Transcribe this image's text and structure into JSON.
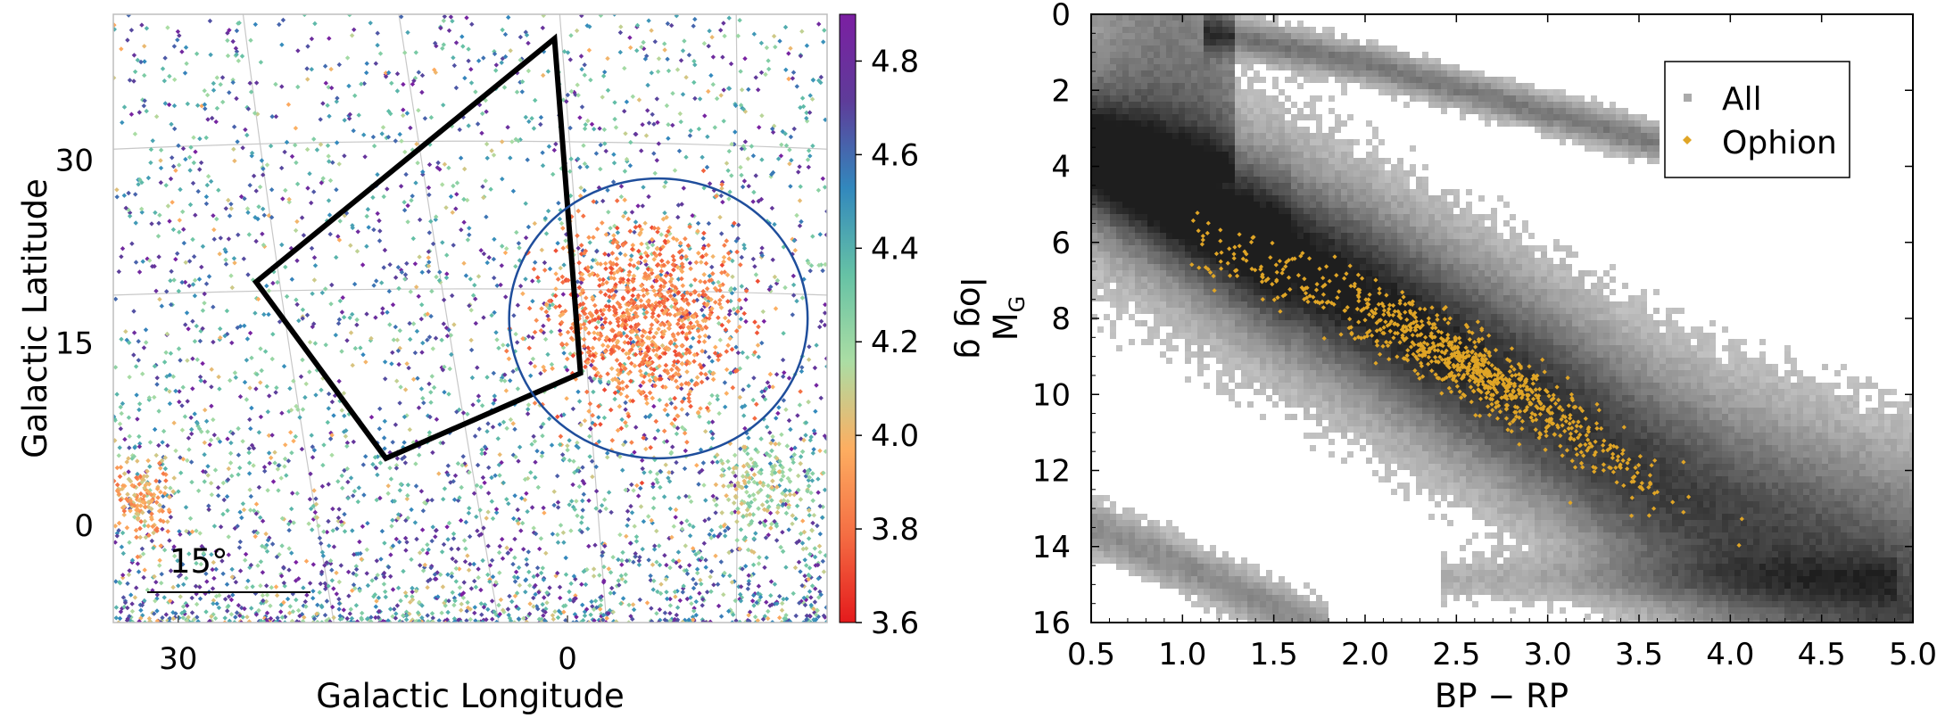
{
  "chart_data": [
    {
      "type": "scatter",
      "title": "",
      "xlabel": "Galactic Longitude",
      "ylabel": "Galactic Latitude",
      "xlim": [
        35,
        -20
      ],
      "ylim": [
        -8,
        42
      ],
      "x_ticks": [
        30,
        0
      ],
      "x_tick_labels": [
        "30",
        "0"
      ],
      "y_ticks": [
        0,
        15,
        30
      ],
      "y_tick_labels": [
        "0",
        "15",
        "30"
      ],
      "grid": true,
      "scale_bar_label": "15°",
      "colorbar": {
        "label": "log g",
        "range": [
          3.6,
          4.9
        ],
        "ticks": [
          3.6,
          3.8,
          4.0,
          4.2,
          4.4,
          4.6,
          4.8
        ],
        "tick_labels": [
          "3.6",
          "3.8",
          "4.0",
          "4.2",
          "4.4",
          "4.6",
          "4.8"
        ],
        "colormap": "Spectral",
        "colors": [
          "#e41a1c",
          "#f46d43",
          "#fdae61",
          "#abdda4",
          "#66c2a5",
          "#3288bd",
          "#5e3c99",
          "#7b1fa2"
        ]
      },
      "overlays": [
        {
          "shape": "polygon",
          "color": "#000000",
          "vertices": [
            [
              1,
              40
            ],
            [
              -1,
              12.5
            ],
            [
              14,
              5.5
            ],
            [
              24,
              20
            ]
          ]
        },
        {
          "shape": "circle",
          "color": "#1f4e9c",
          "center": [
            -7,
            17
          ],
          "radius": 11.5
        }
      ],
      "clusters": [
        {
          "name": "dense low log g group",
          "center": [
            -6,
            17
          ],
          "extent_deg": 8,
          "log_g_range": [
            3.7,
            4.0
          ]
        },
        {
          "name": "lower-right group",
          "center": [
            -15,
            3
          ],
          "extent_deg": 4,
          "log_g_range": [
            4.0,
            4.3
          ]
        },
        {
          "name": "lower-left group",
          "center": [
            33,
            2
          ],
          "extent_deg": 3,
          "log_g_range": [
            3.8,
            4.1
          ]
        }
      ]
    },
    {
      "type": "heatmap",
      "title": "",
      "xlabel": "BP − RP",
      "ylabel": "M_G",
      "ylabel_main": "M",
      "ylabel_sub": "G",
      "xlim": [
        0.5,
        5.0
      ],
      "ylim": [
        16,
        0
      ],
      "x_ticks": [
        0.5,
        1.0,
        1.5,
        2.0,
        2.5,
        3.0,
        3.5,
        4.0,
        4.5,
        5.0
      ],
      "x_tick_labels": [
        "0.5",
        "1.0",
        "1.5",
        "2.0",
        "2.5",
        "3.0",
        "3.5",
        "4.0",
        "4.5",
        "5.0"
      ],
      "y_ticks": [
        0,
        2,
        4,
        6,
        8,
        10,
        12,
        14,
        16
      ],
      "y_tick_labels": [
        "0",
        "2",
        "4",
        "6",
        "8",
        "10",
        "12",
        "14",
        "16"
      ],
      "legend": {
        "placement": "top-right",
        "entries": [
          {
            "name": "All",
            "color": "#aaaaaa"
          },
          {
            "name": "Ophion",
            "color": "#e0a526"
          }
        ]
      },
      "series": [
        {
          "name": "All",
          "kind": "2D density",
          "color": "#555555",
          "main_sequence_ridge": [
            [
              0.5,
              3.8
            ],
            [
              1.0,
              5.0
            ],
            [
              1.5,
              6.2
            ],
            [
              2.0,
              7.5
            ],
            [
              2.5,
              8.9
            ],
            [
              3.0,
              10.3
            ],
            [
              3.5,
              12.0
            ],
            [
              4.0,
              13.4
            ],
            [
              4.5,
              14.5
            ]
          ],
          "giant_branch": [
            [
              1.2,
              0.5
            ],
            [
              2.0,
              1.3
            ],
            [
              3.0,
              2.6
            ]
          ],
          "white_dwarf_sequence": [
            [
              0.5,
              13.5
            ],
            [
              1.0,
              14.5
            ],
            [
              1.5,
              15.6
            ]
          ]
        },
        {
          "name": "Ophion",
          "kind": "scatter",
          "color": "#e0a526",
          "trend": [
            [
              1.0,
              5.8
            ],
            [
              1.5,
              6.8
            ],
            [
              2.0,
              7.8
            ],
            [
              2.5,
              9.0
            ],
            [
              3.0,
              10.5
            ],
            [
              3.5,
              12.2
            ],
            [
              4.0,
              13.5
            ]
          ],
          "densest_region": [
            2.55,
            9.4
          ]
        }
      ]
    }
  ]
}
